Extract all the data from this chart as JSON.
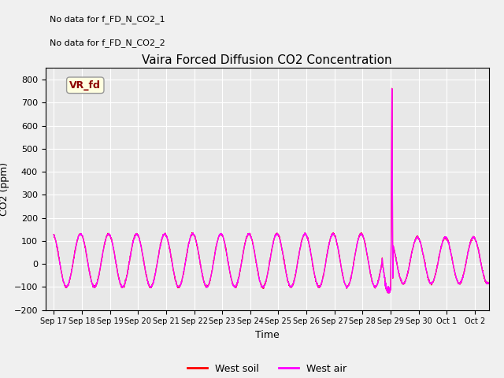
{
  "title": "Vaira Forced Diffusion CO2 Concentration",
  "xlabel": "Time",
  "ylabel": "CO2 (ppm)",
  "ylim": [
    -200,
    850
  ],
  "yticks": [
    -200,
    -100,
    0,
    100,
    200,
    300,
    400,
    500,
    600,
    700,
    800
  ],
  "no_data_text1": "No data for f_FD_N_CO2_1",
  "no_data_text2": "No data for f_FD_N_CO2_2",
  "vr_fd_label": "VR_fd",
  "legend_soil_color": "#ff0000",
  "legend_air_color": "#ff00ff",
  "line_color": "#ff00ff",
  "spike_value": 760,
  "spike_day": 12.05,
  "background_color": "#f0f0f0",
  "axes_bg_color": "#e8e8e8",
  "fig_bg_color": "#f0f0f0",
  "grid_color": "#ffffff",
  "tick_positions": [
    0,
    1,
    2,
    3,
    4,
    5,
    6,
    7,
    8,
    9,
    10,
    11,
    12,
    13,
    14,
    15
  ],
  "tick_labels": [
    "Sep 17",
    "Sep 18",
    "Sep 19",
    "Sep 20",
    "Sep 21",
    "Sep 22",
    "Sep 23",
    "Sep 24",
    "Sep 25",
    "Sep 26",
    "Sep 27",
    "Sep 28",
    "Sep 29",
    "Sep 30",
    "Oct 1",
    "Oct 2"
  ],
  "xlim": [
    -0.3,
    15.5
  ]
}
